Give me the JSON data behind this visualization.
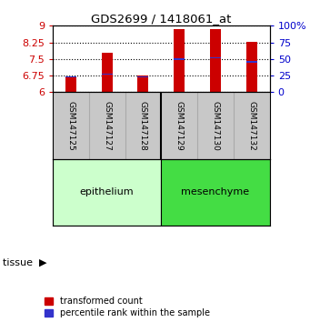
{
  "title": "GDS2699 / 1418061_at",
  "samples": [
    "GSM147125",
    "GSM147127",
    "GSM147128",
    "GSM147129",
    "GSM147130",
    "GSM147132"
  ],
  "red_values": [
    6.68,
    7.77,
    6.74,
    8.85,
    8.85,
    8.28
  ],
  "blue_values": [
    6.7,
    6.82,
    6.7,
    7.5,
    7.56,
    7.38
  ],
  "ylim_left": [
    6,
    9
  ],
  "ylim_right": [
    0,
    100
  ],
  "yticks_left": [
    6,
    6.75,
    7.5,
    8.25,
    9
  ],
  "yticks_right": [
    0,
    25,
    50,
    75,
    100
  ],
  "ytick_labels_right": [
    "0",
    "25",
    "50",
    "75",
    "100%"
  ],
  "group_label": "tissue",
  "bar_width": 0.3,
  "red_color": "#CC0000",
  "blue_color": "#3333CC",
  "left_tick_color": "#CC0000",
  "right_tick_color": "#0000CC",
  "background_color": "#ffffff",
  "plot_bg": "#ffffff",
  "legend_red": "transformed count",
  "legend_blue": "percentile rank within the sample",
  "base_value": 6.0,
  "epithelium_color": "#CCFFCC",
  "mesenchyme_color": "#44DD44",
  "label_bg": "#C8C8C8"
}
